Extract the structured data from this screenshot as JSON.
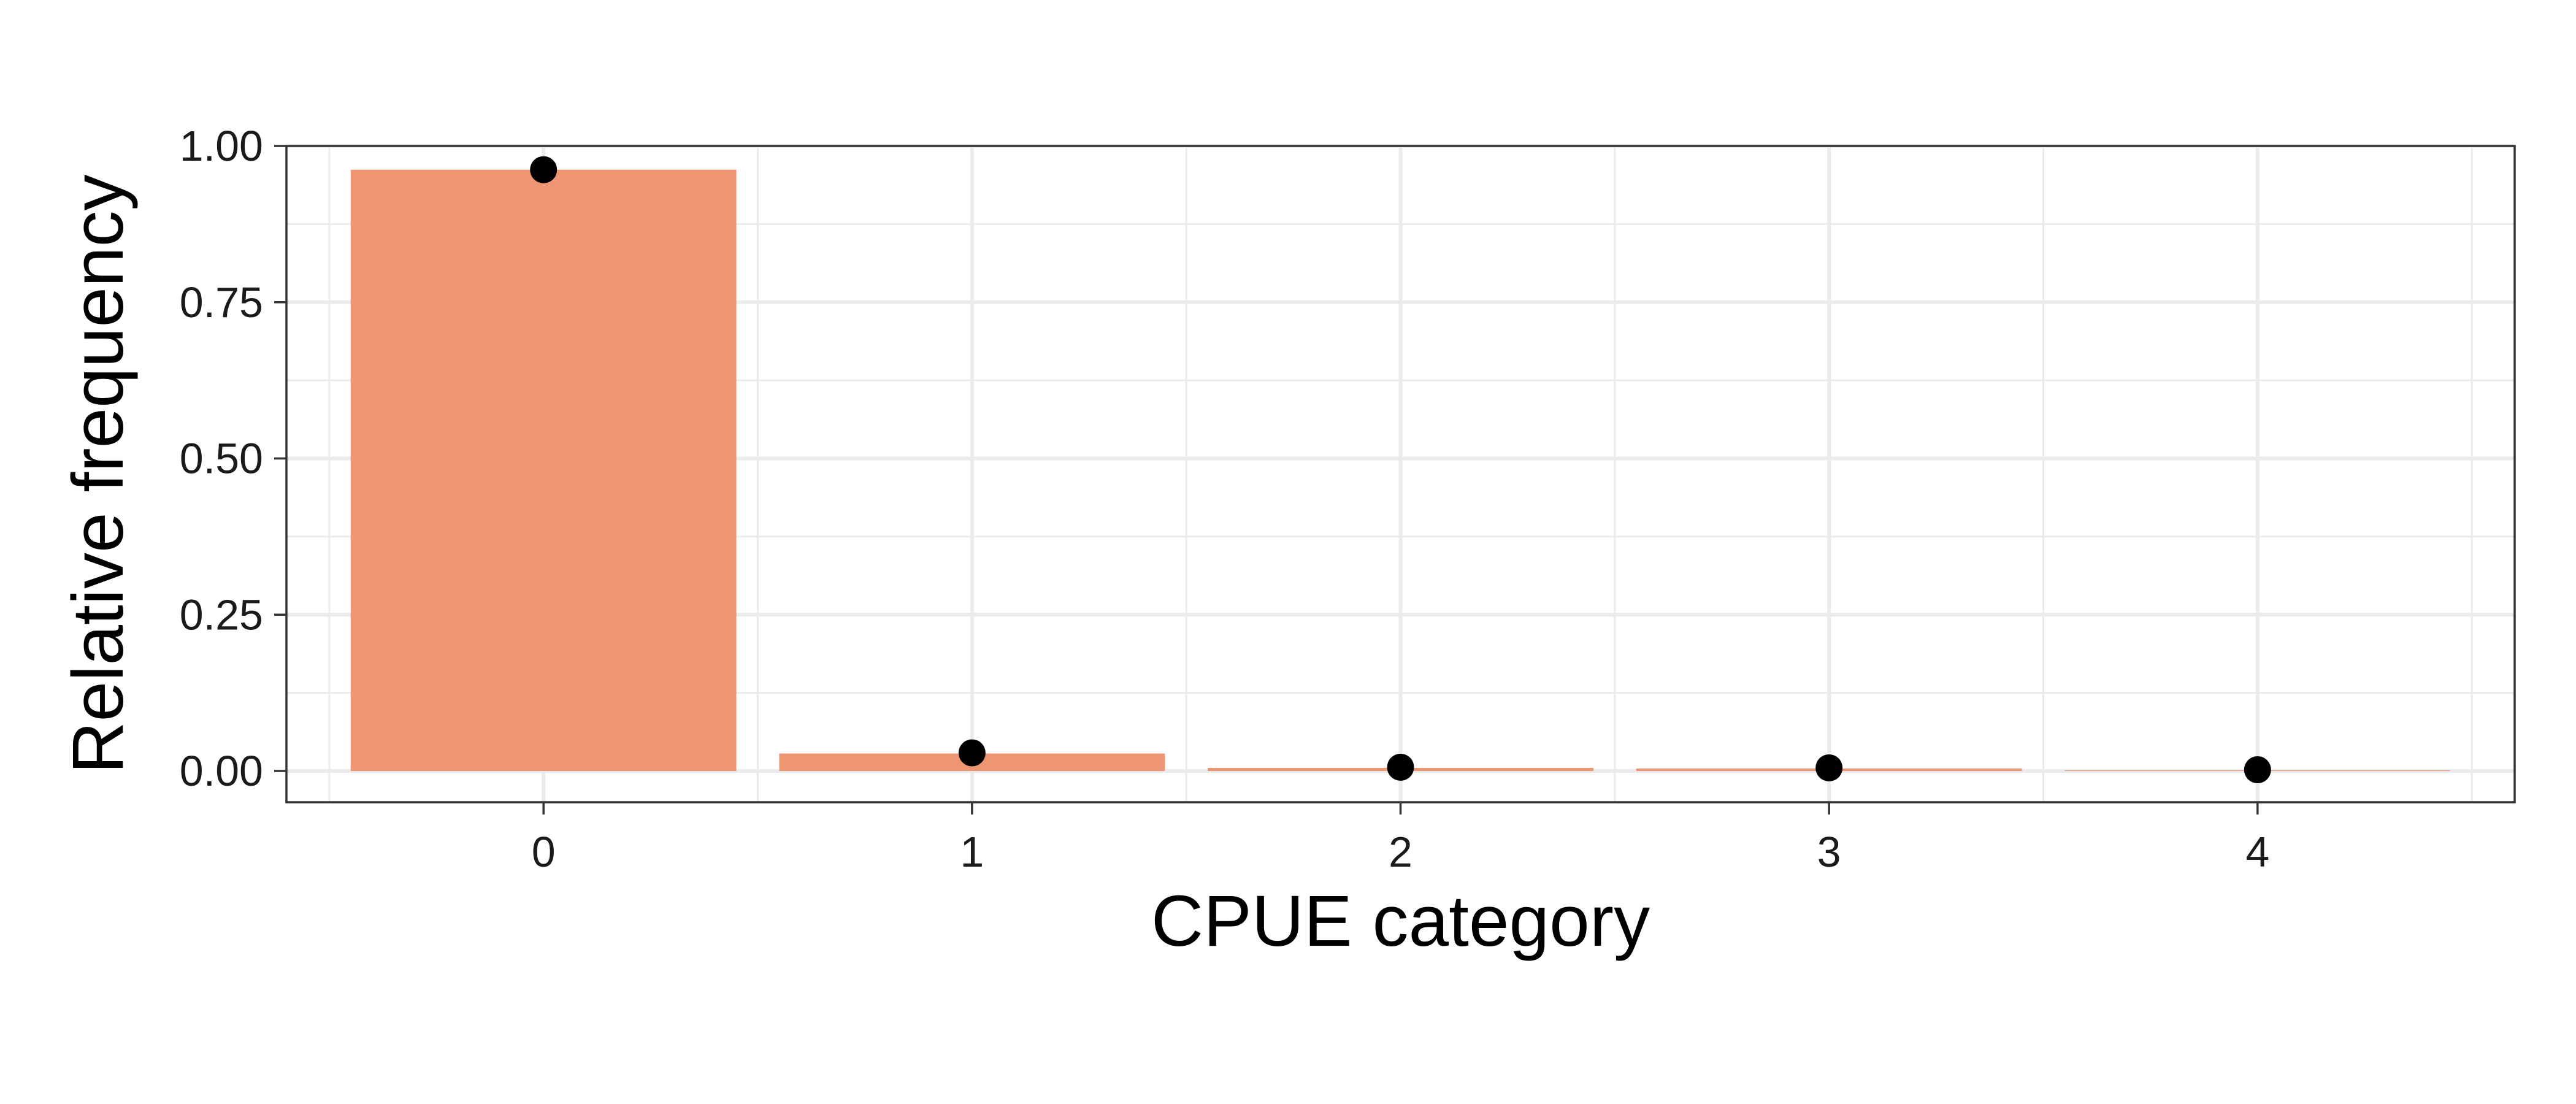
{
  "chart_data": {
    "type": "bar",
    "title": "",
    "xlabel": "CPUE category",
    "ylabel": "Relative frequency",
    "categories": [
      "0",
      "1",
      "2",
      "3",
      "4"
    ],
    "series": [
      {
        "type": "bar",
        "values": [
          0.962,
          0.028,
          0.005,
          0.004,
          0.001
        ]
      },
      {
        "type": "point",
        "values": [
          0.962,
          0.029,
          0.006,
          0.005,
          0.002
        ]
      }
    ],
    "ylim": [
      -0.05,
      1.0
    ],
    "yticks": [
      "0.00",
      "0.25",
      "0.50",
      "0.75",
      "1.00"
    ],
    "grid": true,
    "legend": "none",
    "colors": {
      "bar": "#ee9673",
      "point": "#000000"
    }
  }
}
